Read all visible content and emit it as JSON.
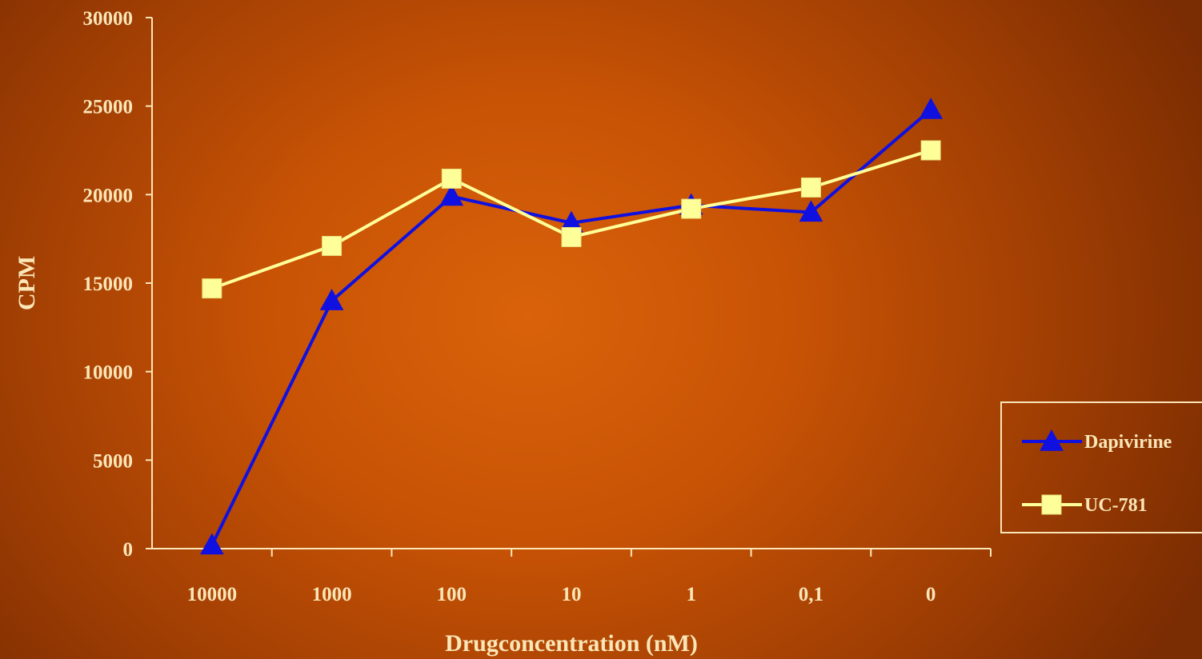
{
  "chart_data": {
    "type": "line",
    "categories": [
      "10000",
      "1000",
      "100",
      "10",
      "1",
      "0,1",
      "0"
    ],
    "series": [
      {
        "name": "Dapivirine",
        "values": [
          200,
          14000,
          19900,
          18400,
          19400,
          19000,
          24800
        ],
        "color": "#1010e0",
        "marker": "triangle"
      },
      {
        "name": "UC-781",
        "values": [
          14700,
          17100,
          20900,
          17600,
          19200,
          20400,
          22500
        ],
        "color": "#ffff99",
        "marker": "square"
      }
    ],
    "xlabel": "Drugconcentration (nM)",
    "ylabel": "CPM",
    "ylim": [
      0,
      30000
    ],
    "yticks": [
      "0",
      "5000",
      "10000",
      "15000",
      "20000",
      "25000",
      "30000"
    ],
    "grid": false,
    "legend_position": "right"
  }
}
